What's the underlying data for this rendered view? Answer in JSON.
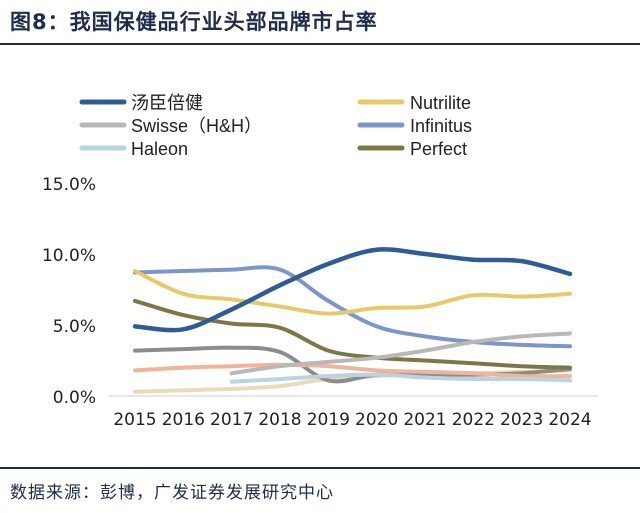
{
  "figure": {
    "title": "图8：我国保健品行业头部品牌市占率",
    "source": "数据来源：彭博，广发证券发展研究中心"
  },
  "chart_data": {
    "type": "line",
    "title": "",
    "xlabel": "",
    "ylabel": "",
    "x": [
      "2015",
      "2016",
      "2017",
      "2018",
      "2019",
      "2020",
      "2021",
      "2022",
      "2023",
      "2024"
    ],
    "ylim": [
      0,
      15
    ],
    "yticks": [
      "0.0%",
      "5.0%",
      "10.0%",
      "15.0%"
    ],
    "ytick_values": [
      0,
      5,
      10,
      15
    ],
    "grid": false,
    "legend_position": "top",
    "series": [
      {
        "name": "汤臣倍健",
        "color": "#2f5c94",
        "values": [
          4.9,
          4.7,
          6.1,
          7.8,
          9.3,
          10.3,
          10.0,
          9.6,
          9.5,
          8.6
        ]
      },
      {
        "name": "Nutrilite",
        "color": "#e8c96a",
        "values": [
          8.8,
          7.2,
          6.8,
          6.3,
          5.8,
          6.2,
          6.3,
          7.1,
          7.0,
          7.2
        ]
      },
      {
        "name": "Swisse（H&H）",
        "color": "#b8b8b8",
        "values": [
          null,
          null,
          1.6,
          2.1,
          2.4,
          2.7,
          3.2,
          3.8,
          4.2,
          4.4
        ]
      },
      {
        "name": "Infinitus",
        "color": "#7d95c9",
        "values": [
          8.7,
          8.8,
          8.9,
          8.9,
          6.7,
          4.9,
          4.2,
          3.8,
          3.6,
          3.5
        ]
      },
      {
        "name": "Haleon",
        "color": "#b9d3e1",
        "values": [
          null,
          null,
          1.0,
          1.2,
          1.4,
          1.5,
          1.3,
          1.2,
          1.2,
          1.1
        ]
      },
      {
        "name": "Perfect",
        "color": "#7c7845",
        "values": [
          6.7,
          5.7,
          5.1,
          4.8,
          3.2,
          2.7,
          2.5,
          2.3,
          2.1,
          2.0
        ]
      },
      {
        "name": "",
        "color": "#f1b49a",
        "values": [
          1.8,
          2.0,
          2.1,
          2.2,
          2.1,
          1.8,
          1.7,
          1.6,
          1.4,
          1.4
        ]
      },
      {
        "name": "",
        "color": "#8c8c8c",
        "values": [
          3.2,
          3.3,
          3.4,
          3.1,
          1.1,
          1.5,
          1.5,
          1.5,
          1.6,
          1.9
        ]
      },
      {
        "name": "",
        "color": "#e8dcb8",
        "values": [
          0.3,
          0.4,
          0.5,
          0.7,
          1.2,
          1.4,
          1.6,
          1.6,
          1.7,
          1.8
        ]
      }
    ]
  }
}
